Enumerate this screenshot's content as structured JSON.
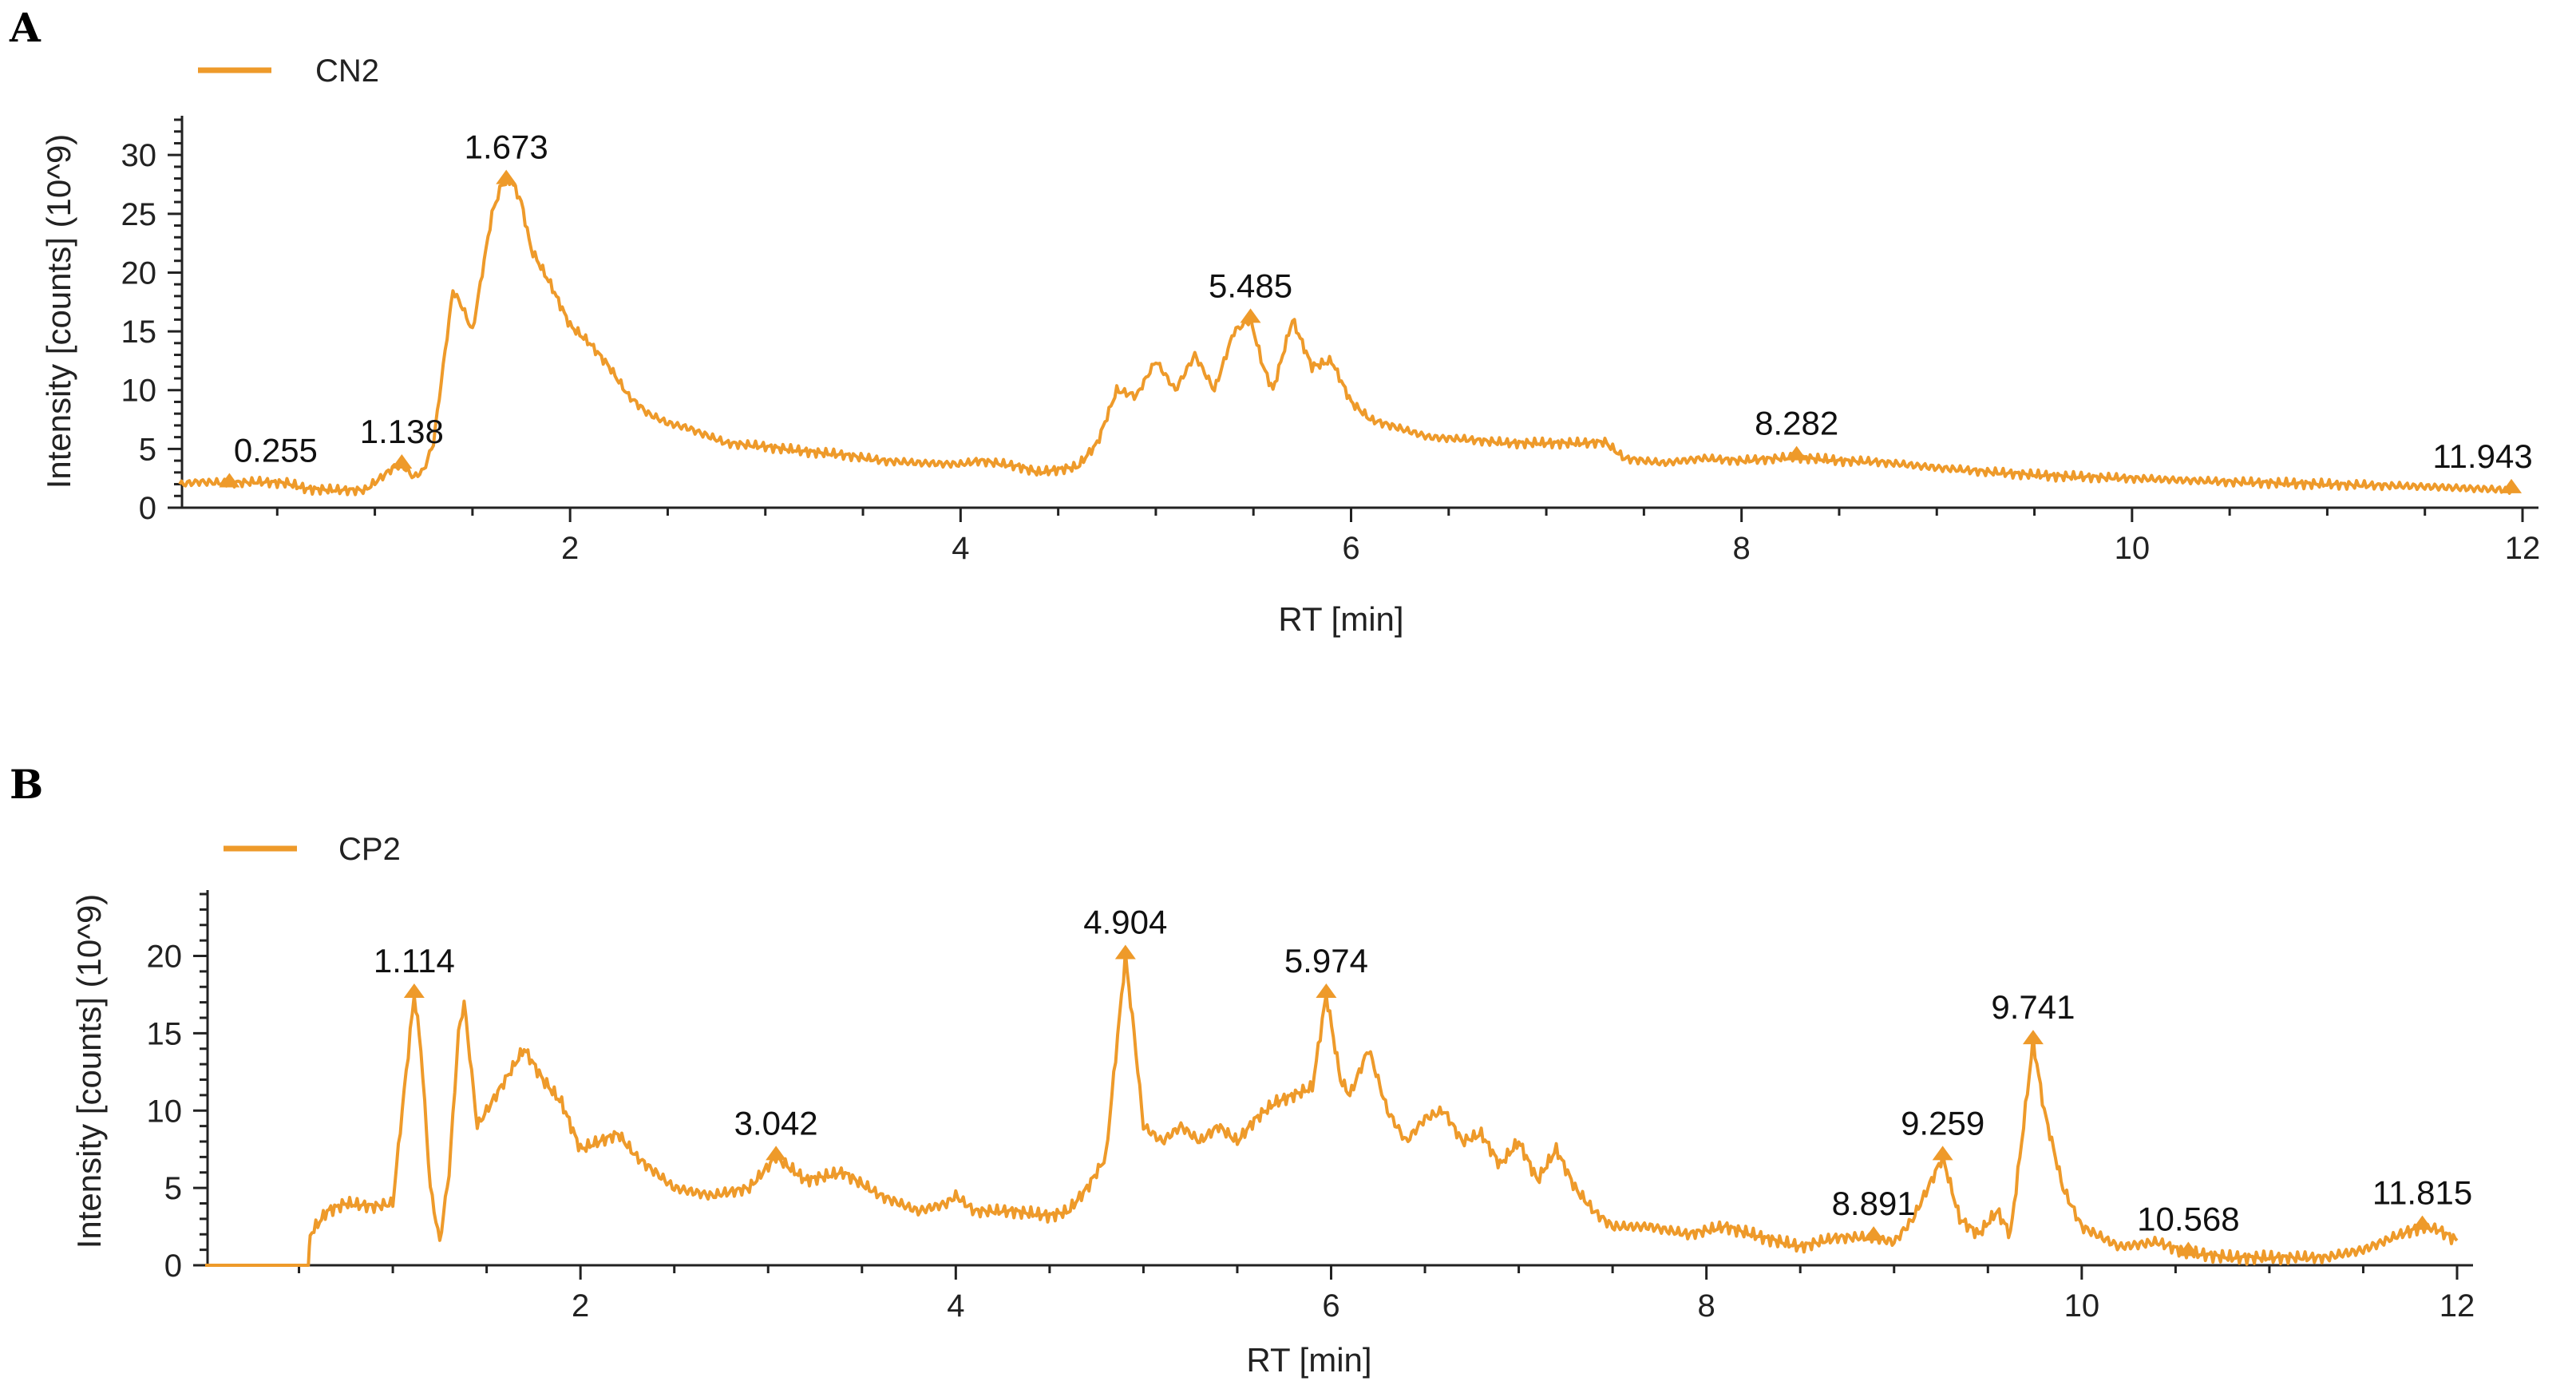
{
  "colors": {
    "series": "#EE9A2A",
    "axis": "#222222",
    "text": "#222222"
  },
  "chart_data": [
    {
      "panel": "A",
      "type": "line",
      "legend": "CN2",
      "legend_position": "top-left",
      "grid": false,
      "xlabel": "RT [min]",
      "ylabel": "Intensity [counts] (10^9)",
      "xlim": [
        0,
        12
      ],
      "ylim": [
        0,
        33
      ],
      "x_ticks": [
        2,
        4,
        6,
        8,
        10,
        12
      ],
      "y_ticks": [
        0,
        5,
        10,
        15,
        20,
        25,
        30
      ],
      "series": [
        {
          "name": "CN2",
          "points": [
            [
              0.0,
              2.0
            ],
            [
              0.1,
              2.2
            ],
            [
              0.25,
              2.1
            ],
            [
              0.4,
              2.2
            ],
            [
              0.55,
              2.1
            ],
            [
              0.65,
              1.6
            ],
            [
              0.8,
              1.5
            ],
            [
              0.95,
              1.5
            ],
            [
              1.05,
              2.8
            ],
            [
              1.1,
              3.5
            ],
            [
              1.14,
              3.6
            ],
            [
              1.2,
              2.6
            ],
            [
              1.25,
              3.2
            ],
            [
              1.3,
              5.5
            ],
            [
              1.35,
              12.0
            ],
            [
              1.4,
              18.5
            ],
            [
              1.45,
              17.0
            ],
            [
              1.5,
              15.0
            ],
            [
              1.55,
              20.0
            ],
            [
              1.6,
              25.0
            ],
            [
              1.65,
              27.5
            ],
            [
              1.7,
              27.8
            ],
            [
              1.75,
              26.0
            ],
            [
              1.8,
              22.0
            ],
            [
              1.9,
              19.0
            ],
            [
              2.0,
              15.5
            ],
            [
              2.1,
              14.0
            ],
            [
              2.2,
              12.0
            ],
            [
              2.3,
              9.5
            ],
            [
              2.4,
              8.0
            ],
            [
              2.5,
              7.2
            ],
            [
              2.6,
              6.8
            ],
            [
              2.8,
              5.5
            ],
            [
              3.0,
              5.2
            ],
            [
              3.2,
              4.8
            ],
            [
              3.4,
              4.5
            ],
            [
              3.6,
              4.0
            ],
            [
              3.8,
              3.8
            ],
            [
              4.0,
              3.7
            ],
            [
              4.1,
              4.0
            ],
            [
              4.3,
              3.5
            ],
            [
              4.4,
              3.0
            ],
            [
              4.6,
              3.5
            ],
            [
              4.7,
              5.5
            ],
            [
              4.8,
              10.0
            ],
            [
              4.9,
              9.5
            ],
            [
              5.0,
              12.5
            ],
            [
              5.1,
              10.0
            ],
            [
              5.2,
              13.0
            ],
            [
              5.3,
              10.0
            ],
            [
              5.4,
              15.0
            ],
            [
              5.485,
              16.0
            ],
            [
              5.55,
              12.0
            ],
            [
              5.6,
              10.0
            ],
            [
              5.7,
              16.0
            ],
            [
              5.75,
              14.0
            ],
            [
              5.8,
              12.0
            ],
            [
              5.9,
              12.5
            ],
            [
              6.0,
              9.0
            ],
            [
              6.1,
              7.5
            ],
            [
              6.2,
              7.0
            ],
            [
              6.4,
              6.0
            ],
            [
              6.6,
              5.8
            ],
            [
              6.8,
              5.5
            ],
            [
              7.0,
              5.5
            ],
            [
              7.2,
              5.5
            ],
            [
              7.3,
              5.6
            ],
            [
              7.4,
              4.2
            ],
            [
              7.6,
              3.8
            ],
            [
              7.8,
              4.2
            ],
            [
              8.0,
              4.0
            ],
            [
              8.282,
              4.3
            ],
            [
              8.5,
              4.0
            ],
            [
              8.7,
              3.9
            ],
            [
              9.0,
              3.4
            ],
            [
              9.3,
              3.0
            ],
            [
              9.6,
              2.7
            ],
            [
              10.0,
              2.5
            ],
            [
              10.5,
              2.2
            ],
            [
              11.0,
              2.0
            ],
            [
              11.5,
              1.8
            ],
            [
              11.943,
              1.5
            ]
          ]
        }
      ],
      "peaks": [
        {
          "x": 0.255,
          "y": 2.0,
          "label": "0.255"
        },
        {
          "x": 1.138,
          "y": 3.6,
          "label": "1.138"
        },
        {
          "x": 1.673,
          "y": 27.8,
          "label": "1.673"
        },
        {
          "x": 5.485,
          "y": 16.0,
          "label": "5.485"
        },
        {
          "x": 8.282,
          "y": 4.3,
          "label": "8.282"
        },
        {
          "x": 11.943,
          "y": 1.5,
          "label": "11.943"
        }
      ]
    },
    {
      "panel": "B",
      "type": "line",
      "legend": "CP2",
      "legend_position": "top-left",
      "grid": false,
      "xlabel": "RT [min]",
      "ylabel": "Intensity [counts] (10^9)",
      "xlim": [
        0,
        12
      ],
      "ylim": [
        0,
        24
      ],
      "x_ticks": [
        2,
        4,
        6,
        8,
        10,
        12
      ],
      "y_ticks": [
        0,
        5,
        10,
        15,
        20
      ],
      "series": [
        {
          "name": "CP2",
          "points": [
            [
              0.0,
              0.0
            ],
            [
              0.55,
              0.0
            ],
            [
              0.56,
              2.0
            ],
            [
              0.65,
              3.5
            ],
            [
              0.75,
              4.0
            ],
            [
              0.9,
              3.8
            ],
            [
              1.0,
              4.0
            ],
            [
              1.05,
              10.0
            ],
            [
              1.114,
              17.5
            ],
            [
              1.15,
              14.0
            ],
            [
              1.2,
              5.0
            ],
            [
              1.25,
              1.5
            ],
            [
              1.3,
              6.0
            ],
            [
              1.35,
              15.0
            ],
            [
              1.38,
              17.0
            ],
            [
              1.45,
              9.0
            ],
            [
              1.5,
              10.0
            ],
            [
              1.6,
              12.0
            ],
            [
              1.7,
              14.0
            ],
            [
              1.8,
              12.0
            ],
            [
              1.9,
              10.5
            ],
            [
              2.0,
              7.5
            ],
            [
              2.1,
              8.0
            ],
            [
              2.2,
              8.5
            ],
            [
              2.3,
              7.0
            ],
            [
              2.5,
              5.0
            ],
            [
              2.7,
              4.5
            ],
            [
              2.9,
              5.0
            ],
            [
              3.042,
              7.0
            ],
            [
              3.2,
              5.5
            ],
            [
              3.4,
              6.0
            ],
            [
              3.6,
              4.5
            ],
            [
              3.8,
              3.5
            ],
            [
              3.95,
              4.0
            ],
            [
              4.0,
              4.5
            ],
            [
              4.1,
              3.5
            ],
            [
              4.3,
              3.5
            ],
            [
              4.5,
              3.2
            ],
            [
              4.6,
              3.5
            ],
            [
              4.7,
              5.0
            ],
            [
              4.8,
              7.0
            ],
            [
              4.904,
              20.0
            ],
            [
              4.95,
              15.0
            ],
            [
              5.0,
              9.0
            ],
            [
              5.1,
              8.0
            ],
            [
              5.2,
              9.0
            ],
            [
              5.3,
              8.0
            ],
            [
              5.4,
              9.0
            ],
            [
              5.5,
              8.0
            ],
            [
              5.6,
              9.5
            ],
            [
              5.7,
              10.5
            ],
            [
              5.8,
              11.0
            ],
            [
              5.9,
              11.5
            ],
            [
              5.974,
              17.5
            ],
            [
              6.05,
              12.0
            ],
            [
              6.1,
              11.0
            ],
            [
              6.2,
              14.0
            ],
            [
              6.3,
              10.0
            ],
            [
              6.4,
              8.0
            ],
            [
              6.5,
              9.5
            ],
            [
              6.6,
              10.0
            ],
            [
              6.7,
              8.0
            ],
            [
              6.8,
              8.5
            ],
            [
              6.9,
              6.5
            ],
            [
              7.0,
              8.0
            ],
            [
              7.1,
              5.5
            ],
            [
              7.2,
              7.5
            ],
            [
              7.3,
              5.0
            ],
            [
              7.4,
              3.5
            ],
            [
              7.5,
              2.5
            ],
            [
              7.7,
              2.5
            ],
            [
              7.9,
              2.0
            ],
            [
              8.1,
              2.5
            ],
            [
              8.3,
              1.8
            ],
            [
              8.5,
              1.2
            ],
            [
              8.7,
              1.8
            ],
            [
              8.891,
              1.8
            ],
            [
              9.0,
              1.5
            ],
            [
              9.1,
              3.0
            ],
            [
              9.2,
              5.5
            ],
            [
              9.259,
              7.0
            ],
            [
              9.35,
              3.0
            ],
            [
              9.45,
              2.0
            ],
            [
              9.55,
              3.5
            ],
            [
              9.62,
              2.0
            ],
            [
              9.68,
              8.0
            ],
            [
              9.741,
              14.5
            ],
            [
              9.8,
              10.0
            ],
            [
              9.9,
              5.0
            ],
            [
              10.0,
              2.5
            ],
            [
              10.2,
              1.2
            ],
            [
              10.4,
              1.5
            ],
            [
              10.568,
              0.8
            ],
            [
              10.8,
              0.5
            ],
            [
              11.0,
              0.5
            ],
            [
              11.3,
              0.5
            ],
            [
              11.5,
              1.0
            ],
            [
              11.7,
              2.0
            ],
            [
              11.815,
              2.5
            ],
            [
              11.9,
              2.3
            ],
            [
              12.0,
              1.6
            ]
          ]
        }
      ],
      "peaks": [
        {
          "x": 1.114,
          "y": 17.5,
          "label": "1.114"
        },
        {
          "x": 3.042,
          "y": 7.0,
          "label": "3.042"
        },
        {
          "x": 4.904,
          "y": 20.0,
          "label": "4.904"
        },
        {
          "x": 5.974,
          "y": 17.5,
          "label": "5.974"
        },
        {
          "x": 8.891,
          "y": 1.8,
          "label": "8.891"
        },
        {
          "x": 9.259,
          "y": 7.0,
          "label": "9.259"
        },
        {
          "x": 9.741,
          "y": 14.5,
          "label": "9.741"
        },
        {
          "x": 10.568,
          "y": 0.8,
          "label": "10.568"
        },
        {
          "x": 11.815,
          "y": 2.5,
          "label": "11.815"
        }
      ]
    }
  ]
}
